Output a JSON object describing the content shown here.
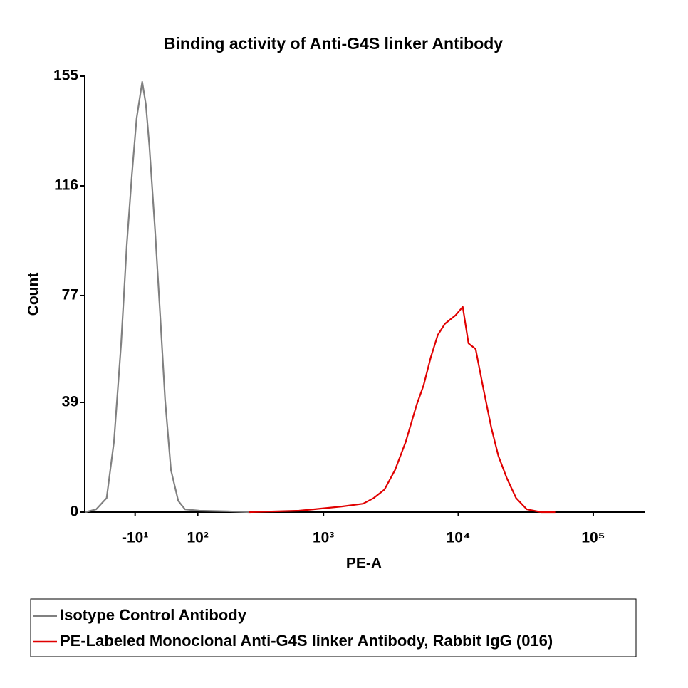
{
  "chart_data": {
    "type": "line",
    "title": "Binding activity of Anti-G4S linker Antibody",
    "x_label": "PE-A",
    "y_label": "Count",
    "x_scale": "arcsinh",
    "xlim": [
      -100,
      240000
    ],
    "ylim": [
      0,
      155
    ],
    "xticks": [
      {
        "value": -10,
        "label": "-10¹"
      },
      {
        "value": 100,
        "label": "10²"
      },
      {
        "value": 1000,
        "label": "10³"
      },
      {
        "value": 10000,
        "label": "10⁴"
      },
      {
        "value": 100000,
        "label": "10⁵"
      }
    ],
    "yticks": [
      0,
      39,
      77,
      116,
      155
    ],
    "series": [
      {
        "name": "Isotype Control Antibody",
        "color": "#808080",
        "x": [
          -100,
          -77,
          -57,
          -44,
          -32,
          -23,
          -15,
          -7.7,
          1,
          6.6,
          12,
          21,
          29,
          37,
          47,
          60,
          73,
          104,
          185,
          274
        ],
        "values": [
          0,
          1,
          5,
          25,
          60,
          95,
          120,
          140,
          153,
          145,
          130,
          100,
          70,
          40,
          15,
          4,
          1,
          0.5,
          0.3,
          0
        ]
      },
      {
        "name": "PE-Labeled Monoclonal Anti-G4S linker Antibody, Rabbit IgG (016)",
        "color": "#e00000",
        "x": [
          274,
          657,
          840,
          1365,
          1970,
          2360,
          2835,
          3400,
          4080,
          4900,
          5530,
          6250,
          7050,
          7970,
          9550,
          10790,
          11900,
          13440,
          15170,
          17550,
          19800,
          22900,
          26800,
          32200,
          41000,
          52300
        ],
        "values": [
          0,
          0.5,
          1,
          2,
          3,
          5,
          8,
          15,
          25,
          38,
          45,
          55,
          63,
          67,
          70,
          73,
          60,
          58,
          45,
          30,
          20,
          12,
          5,
          1,
          0,
          0
        ]
      }
    ]
  }
}
